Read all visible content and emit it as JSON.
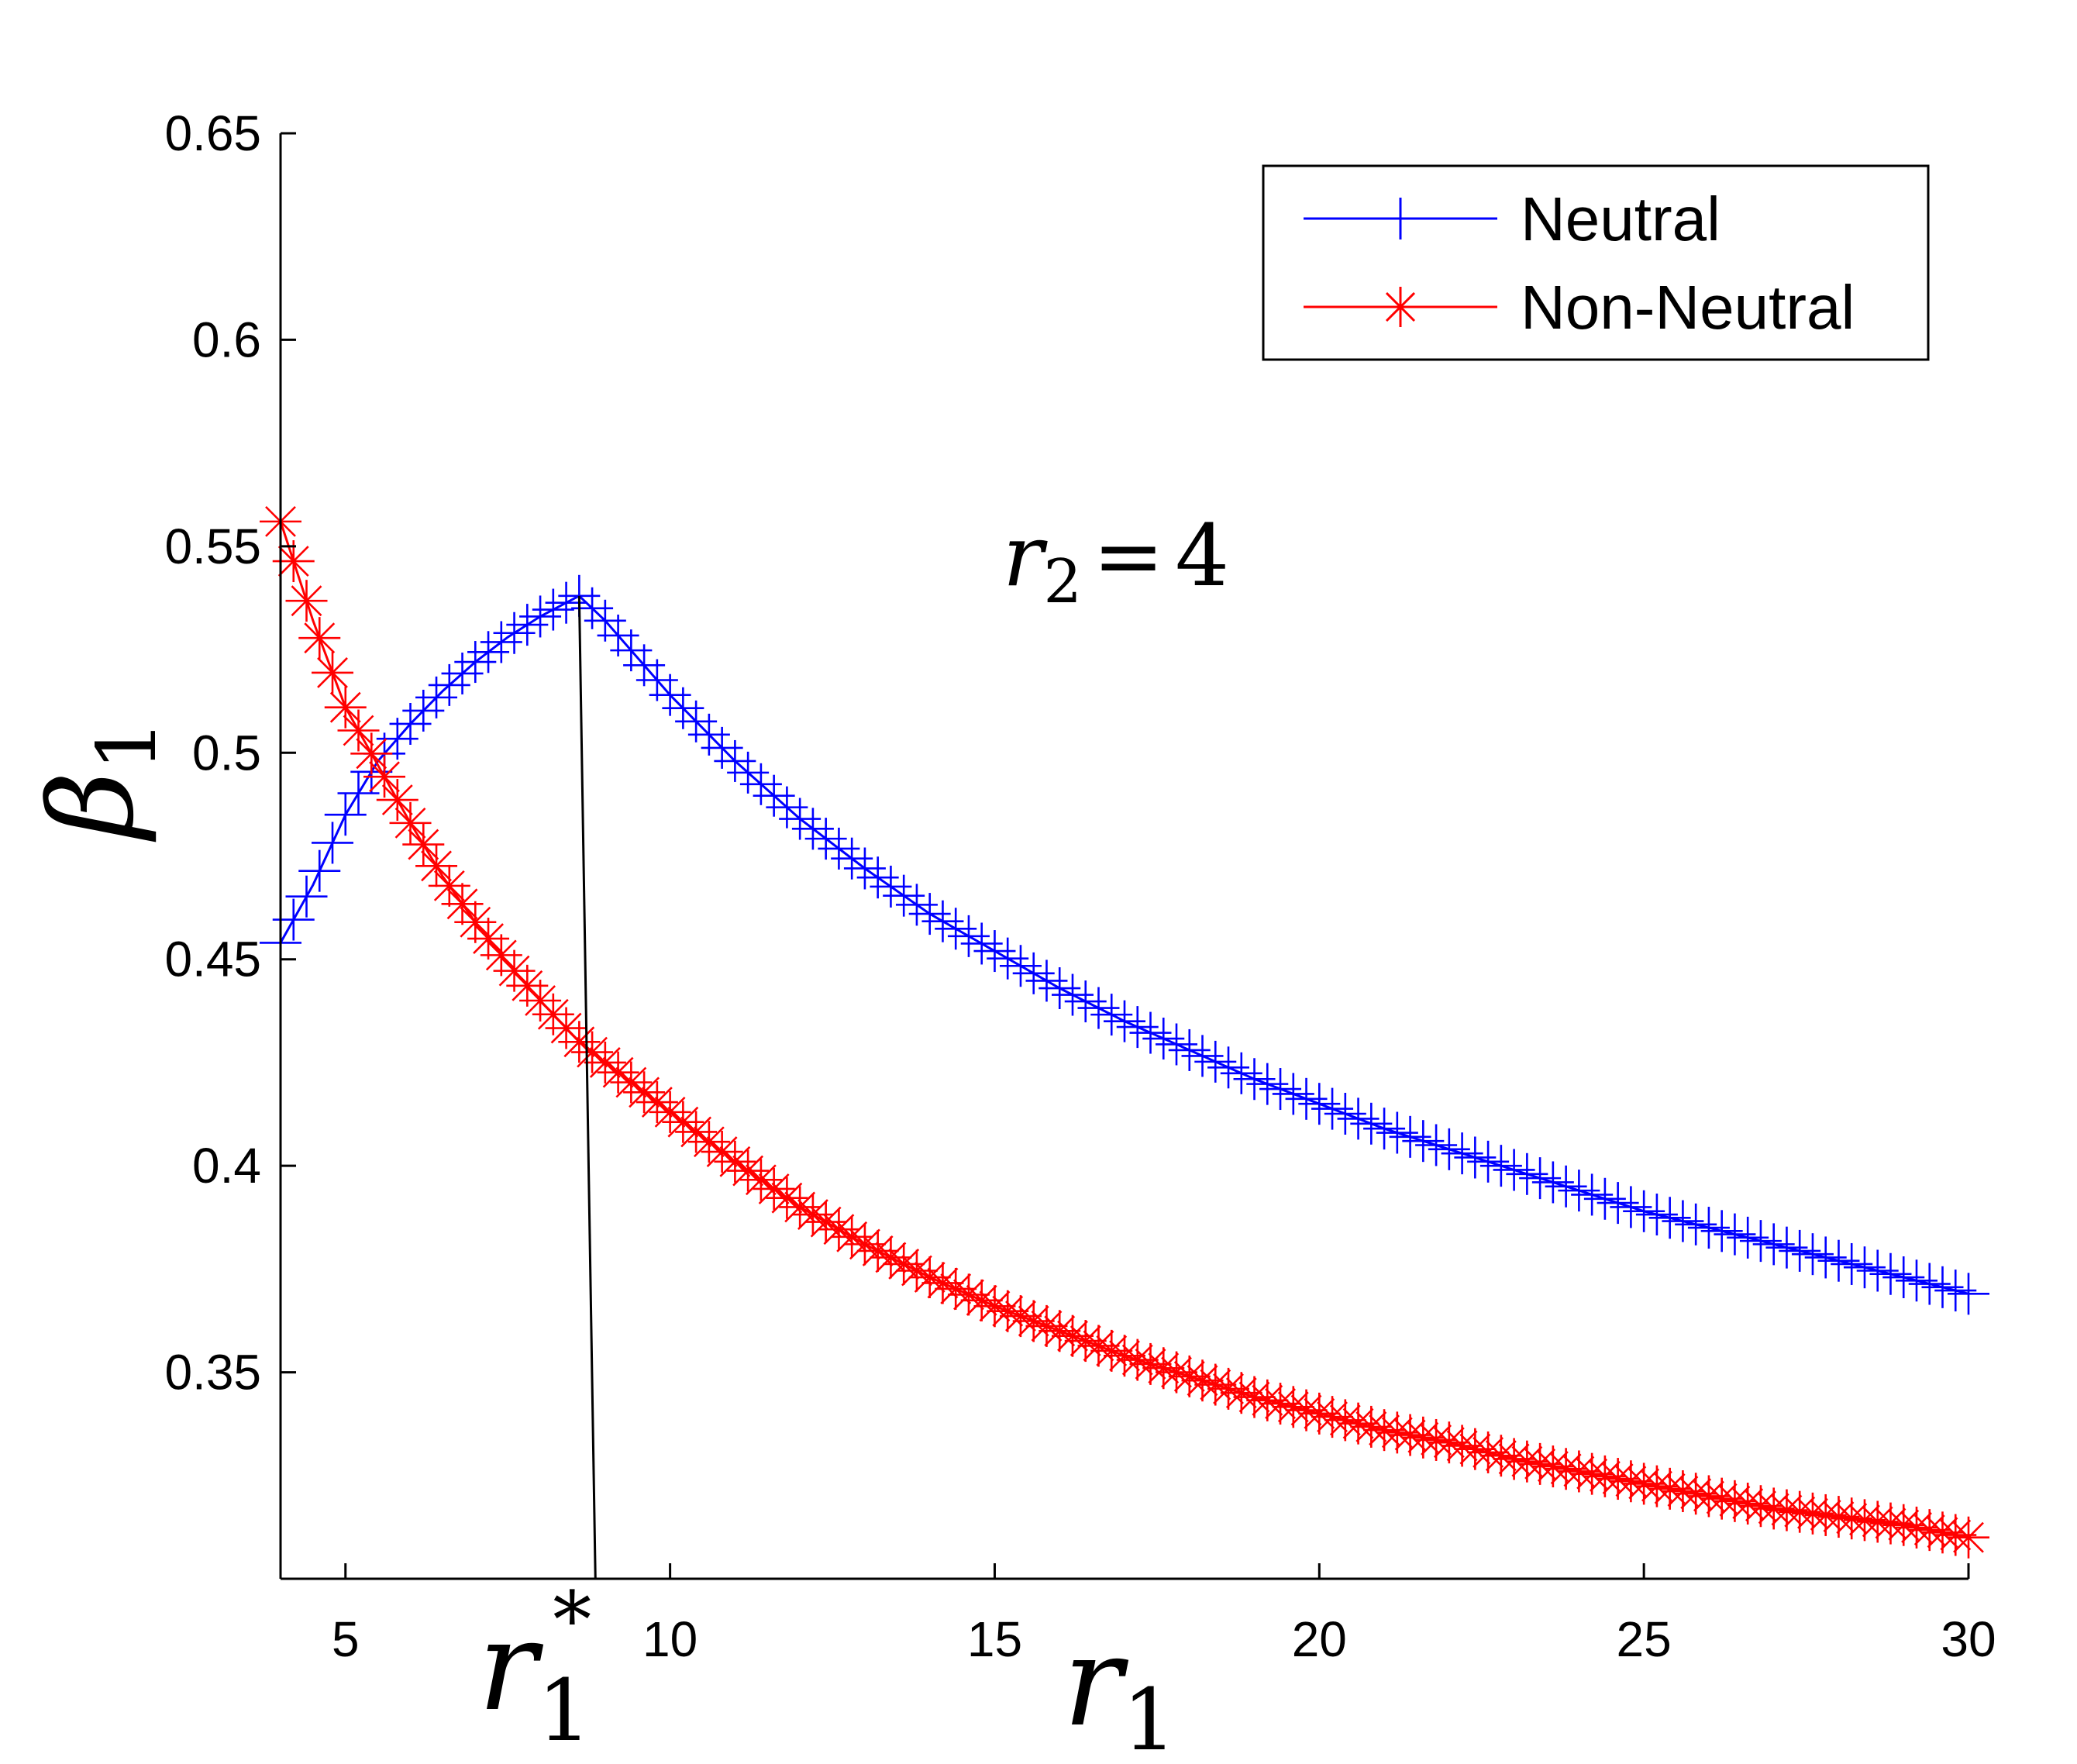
{
  "chart_data": {
    "type": "line",
    "xlabel": "r1",
    "xlabel_base": "r",
    "xlabel_sub": "1",
    "ylabel": "β1",
    "ylabel_base": "β",
    "ylabel_sub": "1",
    "xlim": [
      4,
      30
    ],
    "ylim": [
      0.3,
      0.65
    ],
    "xticks": [
      5,
      10,
      15,
      20,
      25,
      30
    ],
    "yticks": [
      0.35,
      0.4,
      0.45,
      0.5,
      0.55,
      0.6,
      0.65
    ],
    "xtick_labels": [
      "5",
      "10",
      "15",
      "20",
      "25",
      "30"
    ],
    "ytick_labels": [
      "0.35",
      "0.4",
      "0.45",
      "0.5",
      "0.55",
      "0.6",
      "0.65"
    ],
    "grid": false,
    "legend_position": "top-right",
    "annotation": {
      "base": "r",
      "sub": "2",
      "equals": "=",
      "value": "4"
    },
    "marker_label": {
      "base": "r",
      "sub": "1",
      "sup": "*"
    },
    "vertical_line": {
      "x_top": 8.6,
      "y_top": 0.538,
      "x_bottom": 8.85,
      "y_bottom": 0.3
    },
    "series": [
      {
        "name": "Neutral",
        "color": "#0000ff",
        "marker": "plus",
        "peak_x": 8.6,
        "points": [
          [
            4,
            0.454
          ],
          [
            4.5,
            0.468
          ],
          [
            5,
            0.485
          ],
          [
            5.5,
            0.498
          ],
          [
            6,
            0.507
          ],
          [
            6.5,
            0.515
          ],
          [
            7,
            0.522
          ],
          [
            7.5,
            0.528
          ],
          [
            8,
            0.533
          ],
          [
            8.6,
            0.538
          ],
          [
            9,
            0.532
          ],
          [
            10,
            0.514
          ],
          [
            11,
            0.498
          ],
          [
            12,
            0.484
          ],
          [
            13,
            0.472
          ],
          [
            14,
            0.461
          ],
          [
            15,
            0.452
          ],
          [
            16,
            0.443
          ],
          [
            17,
            0.435
          ],
          [
            18,
            0.428
          ],
          [
            19,
            0.421
          ],
          [
            20,
            0.415
          ],
          [
            21,
            0.409
          ],
          [
            22,
            0.404
          ],
          [
            23,
            0.399
          ],
          [
            24,
            0.394
          ],
          [
            25,
            0.389
          ],
          [
            26,
            0.385
          ],
          [
            27,
            0.381
          ],
          [
            28,
            0.377
          ],
          [
            29,
            0.373
          ],
          [
            30,
            0.369
          ]
        ]
      },
      {
        "name": "Non-Neutral",
        "color": "#ff0000",
        "marker": "asterisk",
        "points": [
          [
            4,
            0.556
          ],
          [
            4.5,
            0.532
          ],
          [
            5,
            0.511
          ],
          [
            5.5,
            0.497
          ],
          [
            6,
            0.483
          ],
          [
            6.5,
            0.47
          ],
          [
            7,
            0.459
          ],
          [
            7.5,
            0.449
          ],
          [
            8,
            0.44
          ],
          [
            8.6,
            0.43
          ],
          [
            9,
            0.425
          ],
          [
            10,
            0.413
          ],
          [
            11,
            0.401
          ],
          [
            12,
            0.39
          ],
          [
            13,
            0.381
          ],
          [
            14,
            0.373
          ],
          [
            15,
            0.366
          ],
          [
            16,
            0.36
          ],
          [
            17,
            0.354
          ],
          [
            18,
            0.349
          ],
          [
            19,
            0.344
          ],
          [
            20,
            0.34
          ],
          [
            21,
            0.336
          ],
          [
            22,
            0.333
          ],
          [
            23,
            0.329
          ],
          [
            24,
            0.326
          ],
          [
            25,
            0.323
          ],
          [
            26,
            0.32
          ],
          [
            27,
            0.317
          ],
          [
            28,
            0.315
          ],
          [
            29,
            0.313
          ],
          [
            30,
            0.31
          ]
        ]
      }
    ]
  }
}
